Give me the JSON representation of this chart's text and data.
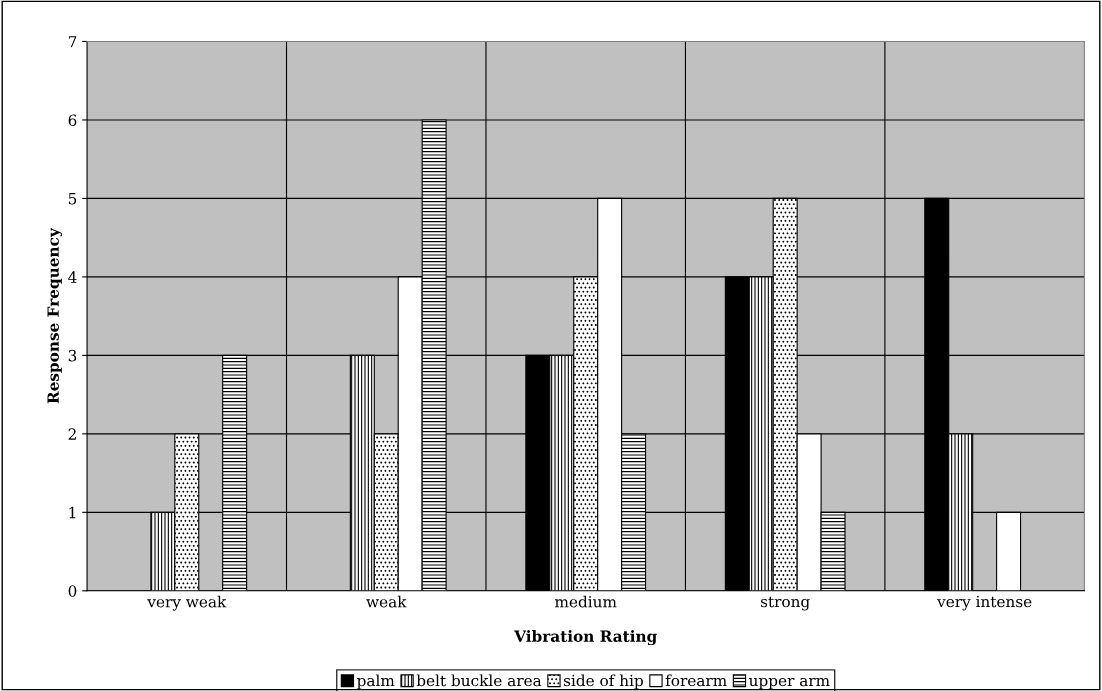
{
  "chart_data": {
    "type": "bar",
    "xlabel": "Vibration Rating",
    "ylabel": "Response Frequency",
    "categories": [
      "very weak",
      "weak",
      "medium",
      "strong",
      "very intense"
    ],
    "series": [
      {
        "name": "palm",
        "color": "#000000",
        "values": [
          0,
          0,
          3,
          4,
          5
        ]
      },
      {
        "name": "belt buckle area",
        "color": "#ffffff",
        "values": [
          1,
          3,
          3,
          4,
          2
        ]
      },
      {
        "name": "side of hip",
        "color": "#ffffff",
        "values": [
          2,
          2,
          4,
          5,
          0
        ]
      },
      {
        "name": "forearm",
        "color": "#ffffff",
        "values": [
          0,
          4,
          5,
          2,
          1
        ]
      },
      {
        "name": "upper arm",
        "color": "#ffffff",
        "values": [
          3,
          6,
          2,
          1,
          0
        ]
      }
    ],
    "ylim": [
      0,
      7
    ],
    "yticks": [
      0,
      1,
      2,
      3,
      4,
      5,
      6,
      7
    ],
    "grid": true,
    "legend": "bottom"
  }
}
